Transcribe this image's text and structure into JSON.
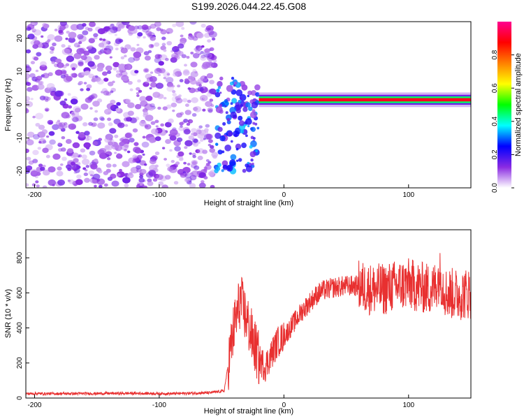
{
  "figure": {
    "title": "S199.2026.044.22.45.G08"
  },
  "chart_data": [
    {
      "type": "heatmap",
      "xlabel": "Height of straight line (km)",
      "ylabel": "Frequency (Hz)",
      "xlim": [
        -207,
        150
      ],
      "ylim": [
        -25,
        25
      ],
      "xticks": [
        -200,
        -100,
        0,
        100
      ],
      "yticks": [
        -20,
        -10,
        0,
        10,
        20
      ],
      "colorbar": {
        "label": "Normalized spectral amplitude",
        "range": [
          0,
          1
        ],
        "ticks": [
          0.0,
          0.2,
          0.4,
          0.6,
          0.8
        ],
        "tick_labels": [
          "0.0",
          "0.2",
          "0.4",
          "0.6",
          "0.8"
        ],
        "colormap": [
          "#ffffff",
          "#8a2be2",
          "#0000ff",
          "#00ffff",
          "#00ff00",
          "#ffff00",
          "#ff8000",
          "#ff0000",
          "#ff0090"
        ]
      },
      "regions": [
        {
          "x_range": [
            -207,
            -55
          ],
          "y_range": [
            -25,
            25
          ],
          "kind": "scattered noise",
          "amplitude": 0.05
        },
        {
          "x_range": [
            -55,
            -20
          ],
          "y_range": [
            -20,
            8
          ],
          "kind": "transition blobs",
          "amplitude": 0.2
        },
        {
          "x_range": [
            -20,
            150
          ],
          "y_range": [
            0.5,
            2.5
          ],
          "kind": "stable tone band",
          "amplitude": 0.9
        }
      ]
    },
    {
      "type": "line",
      "xlabel": "Height of straight line (km)",
      "ylabel": "SNR (10 * v/v)",
      "xlim": [
        -207,
        150
      ],
      "ylim": [
        0,
        960
      ],
      "xticks": [
        -200,
        -100,
        0,
        100
      ],
      "yticks": [
        0,
        200,
        400,
        600,
        800
      ],
      "color": "#e83030",
      "x": [
        -207,
        -180,
        -150,
        -120,
        -90,
        -60,
        -48,
        -40,
        -35,
        -30,
        -25,
        -20,
        -15,
        -10,
        -5,
        0,
        5,
        10,
        15,
        20,
        25,
        30,
        40,
        50,
        60,
        70,
        80,
        90,
        100,
        110,
        120,
        125,
        130,
        140,
        150
      ],
      "y": [
        25,
        25,
        26,
        27,
        25,
        30,
        40,
        400,
        560,
        450,
        330,
        220,
        180,
        250,
        320,
        350,
        400,
        450,
        500,
        540,
        580,
        610,
        630,
        640,
        640,
        620,
        620,
        640,
        650,
        630,
        620,
        700,
        600,
        590,
        600
      ]
    }
  ]
}
